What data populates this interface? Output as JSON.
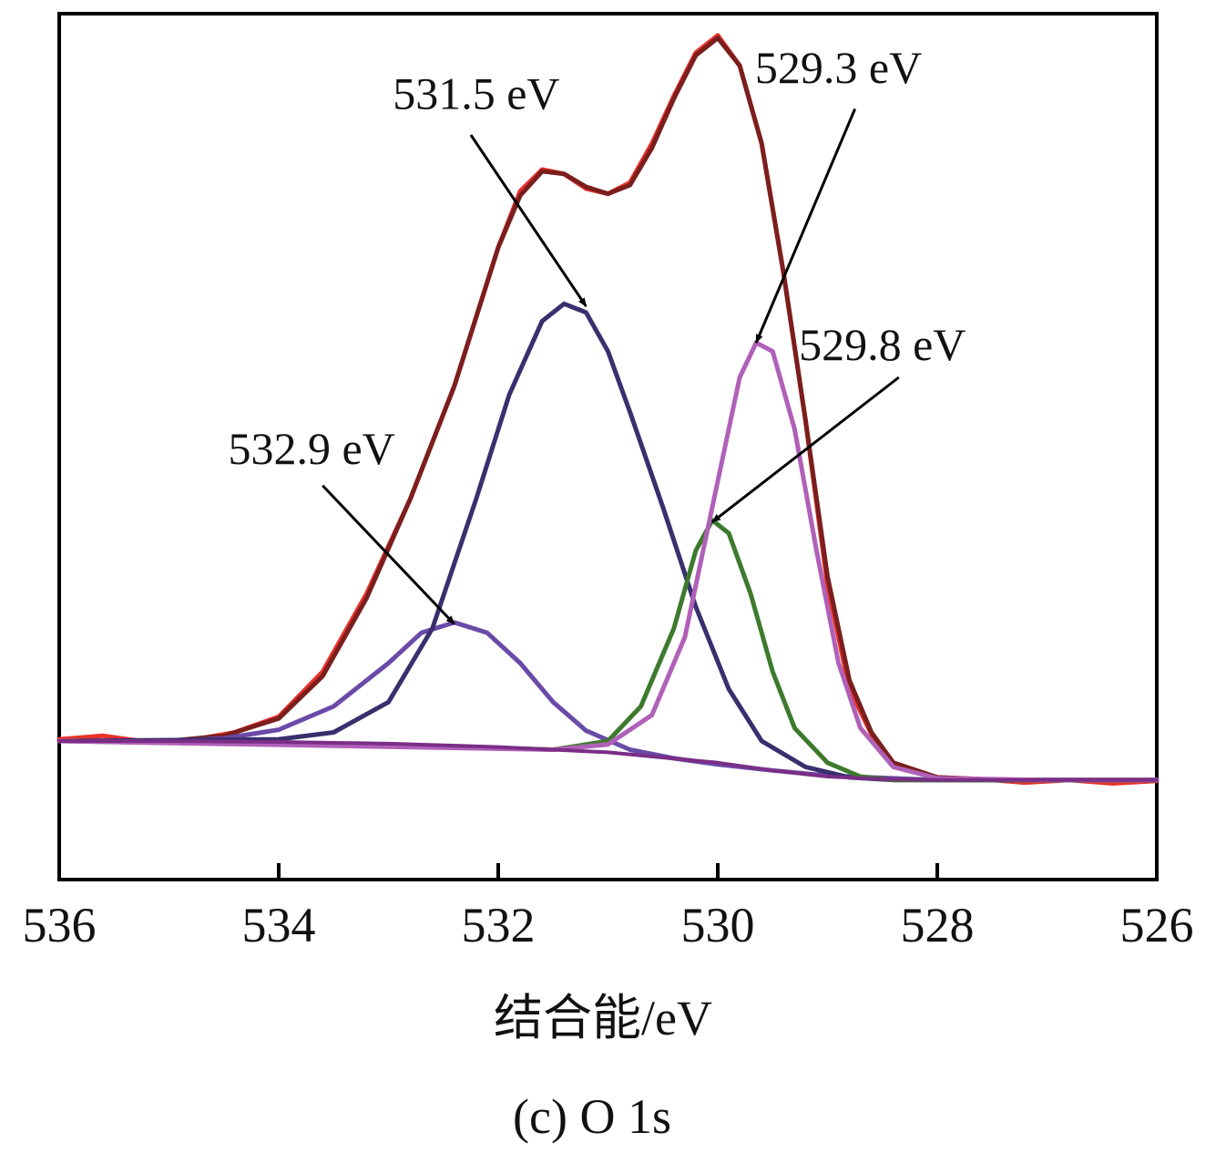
{
  "chart_data": {
    "type": "line",
    "title": "",
    "xlabel": "结合能/eV",
    "ylabel": "",
    "caption": "(c) O 1s",
    "x_reversed": true,
    "xlim": [
      536,
      526
    ],
    "ylim": [
      0,
      100
    ],
    "x_ticks": [
      "536",
      "534",
      "532",
      "530",
      "528",
      "526"
    ],
    "grid": false,
    "legend": "none",
    "series": [
      {
        "role": "raw-data",
        "color": "#e8322a",
        "x": [
          536.0,
          535.6,
          535.2,
          534.8,
          534.4,
          534.0,
          533.6,
          533.2,
          532.8,
          532.4,
          532.2,
          532.0,
          531.8,
          531.6,
          531.4,
          531.2,
          531.0,
          530.8,
          530.6,
          530.4,
          530.2,
          530.0,
          529.8,
          529.6,
          529.4,
          529.2,
          529.0,
          528.8,
          528.6,
          528.4,
          528.0,
          527.6,
          527.2,
          526.8,
          526.4,
          526.0
        ],
        "y": [
          16.2,
          16.6,
          15.9,
          16.1,
          17.0,
          18.8,
          24.0,
          33.0,
          44.0,
          57.0,
          65.0,
          73.0,
          79.5,
          82.0,
          81.5,
          79.8,
          79.2,
          80.5,
          85.0,
          90.5,
          95.5,
          97.5,
          94.0,
          85.0,
          70.0,
          53.0,
          34.0,
          22.0,
          16.8,
          13.2,
          11.8,
          11.6,
          11.2,
          11.5,
          11.1,
          11.4
        ]
      },
      {
        "role": "fit-envelope",
        "color": "#7a1e1e",
        "x": [
          536.0,
          535.0,
          534.5,
          534.0,
          533.6,
          533.2,
          532.8,
          532.4,
          532.2,
          532.0,
          531.8,
          531.6,
          531.4,
          531.2,
          531.0,
          530.8,
          530.6,
          530.4,
          530.2,
          530.0,
          529.8,
          529.6,
          529.4,
          529.2,
          529.0,
          528.8,
          528.6,
          528.4,
          528.0,
          527.5,
          527.0,
          526.0
        ],
        "y": [
          16.0,
          16.0,
          16.6,
          18.6,
          23.5,
          32.5,
          44.0,
          57.0,
          65.0,
          73.0,
          79.0,
          81.8,
          81.5,
          80.0,
          79.2,
          80.2,
          84.5,
          90.2,
          95.2,
          97.2,
          94.0,
          85.0,
          70.0,
          53.0,
          35.0,
          23.0,
          17.0,
          13.5,
          11.8,
          11.5,
          11.5,
          11.5
        ]
      },
      {
        "role": "fit-component",
        "color": "#6a4aa8",
        "peak_label": "532.9 eV",
        "x": [
          536.0,
          535.0,
          534.5,
          534.0,
          533.5,
          533.0,
          532.7,
          532.4,
          532.1,
          531.8,
          531.5,
          531.2,
          530.8,
          530.4,
          530.0,
          529.5,
          529.0,
          528.0,
          527.0,
          526.0
        ],
        "y": [
          16.0,
          16.0,
          16.3,
          17.3,
          20.0,
          25.0,
          28.5,
          29.7,
          28.5,
          25.0,
          20.5,
          17.2,
          15.0,
          14.0,
          13.3,
          12.6,
          12.0,
          11.5,
          11.5,
          11.5
        ]
      },
      {
        "role": "fit-component",
        "color": "#3a2f6e",
        "peak_label": "531.5 eV",
        "x": [
          536.0,
          534.0,
          533.5,
          533.0,
          532.6,
          532.2,
          531.9,
          531.6,
          531.4,
          531.2,
          531.0,
          530.8,
          530.5,
          530.2,
          529.9,
          529.6,
          529.2,
          528.8,
          528.4,
          528.0,
          527.0,
          526.0
        ],
        "y": [
          16.0,
          16.2,
          17.0,
          20.5,
          29.0,
          44.0,
          56.0,
          64.5,
          66.5,
          65.5,
          61.0,
          54.0,
          43.0,
          31.5,
          22.0,
          16.0,
          13.0,
          11.8,
          11.5,
          11.5,
          11.5,
          11.5
        ]
      },
      {
        "role": "fit-component",
        "color": "#3d7a2e",
        "peak_label": "529.8 eV",
        "x": [
          536.0,
          532.0,
          531.5,
          531.0,
          530.7,
          530.4,
          530.2,
          530.05,
          529.9,
          529.7,
          529.5,
          529.3,
          529.0,
          528.7,
          528.4,
          528.0,
          527.0,
          526.0
        ],
        "y": [
          16.0,
          15.2,
          15.0,
          16.0,
          20.0,
          29.0,
          38.0,
          41.5,
          40.0,
          33.0,
          24.0,
          17.5,
          13.5,
          11.9,
          11.5,
          11.5,
          11.5,
          11.5
        ]
      },
      {
        "role": "fit-component",
        "color": "#b060b8",
        "peak_label": "529.3 eV",
        "x": [
          536.0,
          531.5,
          531.0,
          530.6,
          530.3,
          530.0,
          529.8,
          529.65,
          529.5,
          529.3,
          529.1,
          528.9,
          528.7,
          528.4,
          528.0,
          527.0,
          526.0
        ],
        "y": [
          16.0,
          15.0,
          15.6,
          19.0,
          28.0,
          46.0,
          58.0,
          62.0,
          61.0,
          52.0,
          38.0,
          25.0,
          17.5,
          13.0,
          11.7,
          11.5,
          11.5
        ]
      },
      {
        "role": "background",
        "color": "#7a2e86",
        "x": [
          536.0,
          535.0,
          534.0,
          533.0,
          532.0,
          531.0,
          530.0,
          529.5,
          529.0,
          528.5,
          528.0,
          527.0,
          526.0
        ],
        "y": [
          16.0,
          16.0,
          15.9,
          15.7,
          15.3,
          14.7,
          13.5,
          12.6,
          11.9,
          11.6,
          11.5,
          11.5,
          11.5
        ]
      }
    ],
    "annotations": [
      {
        "text": "531.5 eV",
        "text_x": 532.2,
        "text_y": 89.0,
        "arrow_from_x": 532.25,
        "arrow_from_y": 86.0,
        "arrow_to_x": 531.2,
        "arrow_to_y": 66.2
      },
      {
        "text": "529.3 eV",
        "text_x": 528.9,
        "text_y": 92.0,
        "arrow_from_x": 528.75,
        "arrow_from_y": 89.0,
        "arrow_to_x": 529.65,
        "arrow_to_y": 62.0
      },
      {
        "text": "529.8 eV",
        "text_x": 528.5,
        "text_y": 60.0,
        "arrow_from_x": 528.35,
        "arrow_from_y": 58.0,
        "arrow_to_x": 530.05,
        "arrow_to_y": 41.3
      },
      {
        "text": "532.9 eV",
        "text_x": 533.7,
        "text_y": 48.0,
        "arrow_from_x": 533.6,
        "arrow_from_y": 45.5,
        "arrow_to_x": 532.4,
        "arrow_to_y": 29.5
      }
    ]
  }
}
